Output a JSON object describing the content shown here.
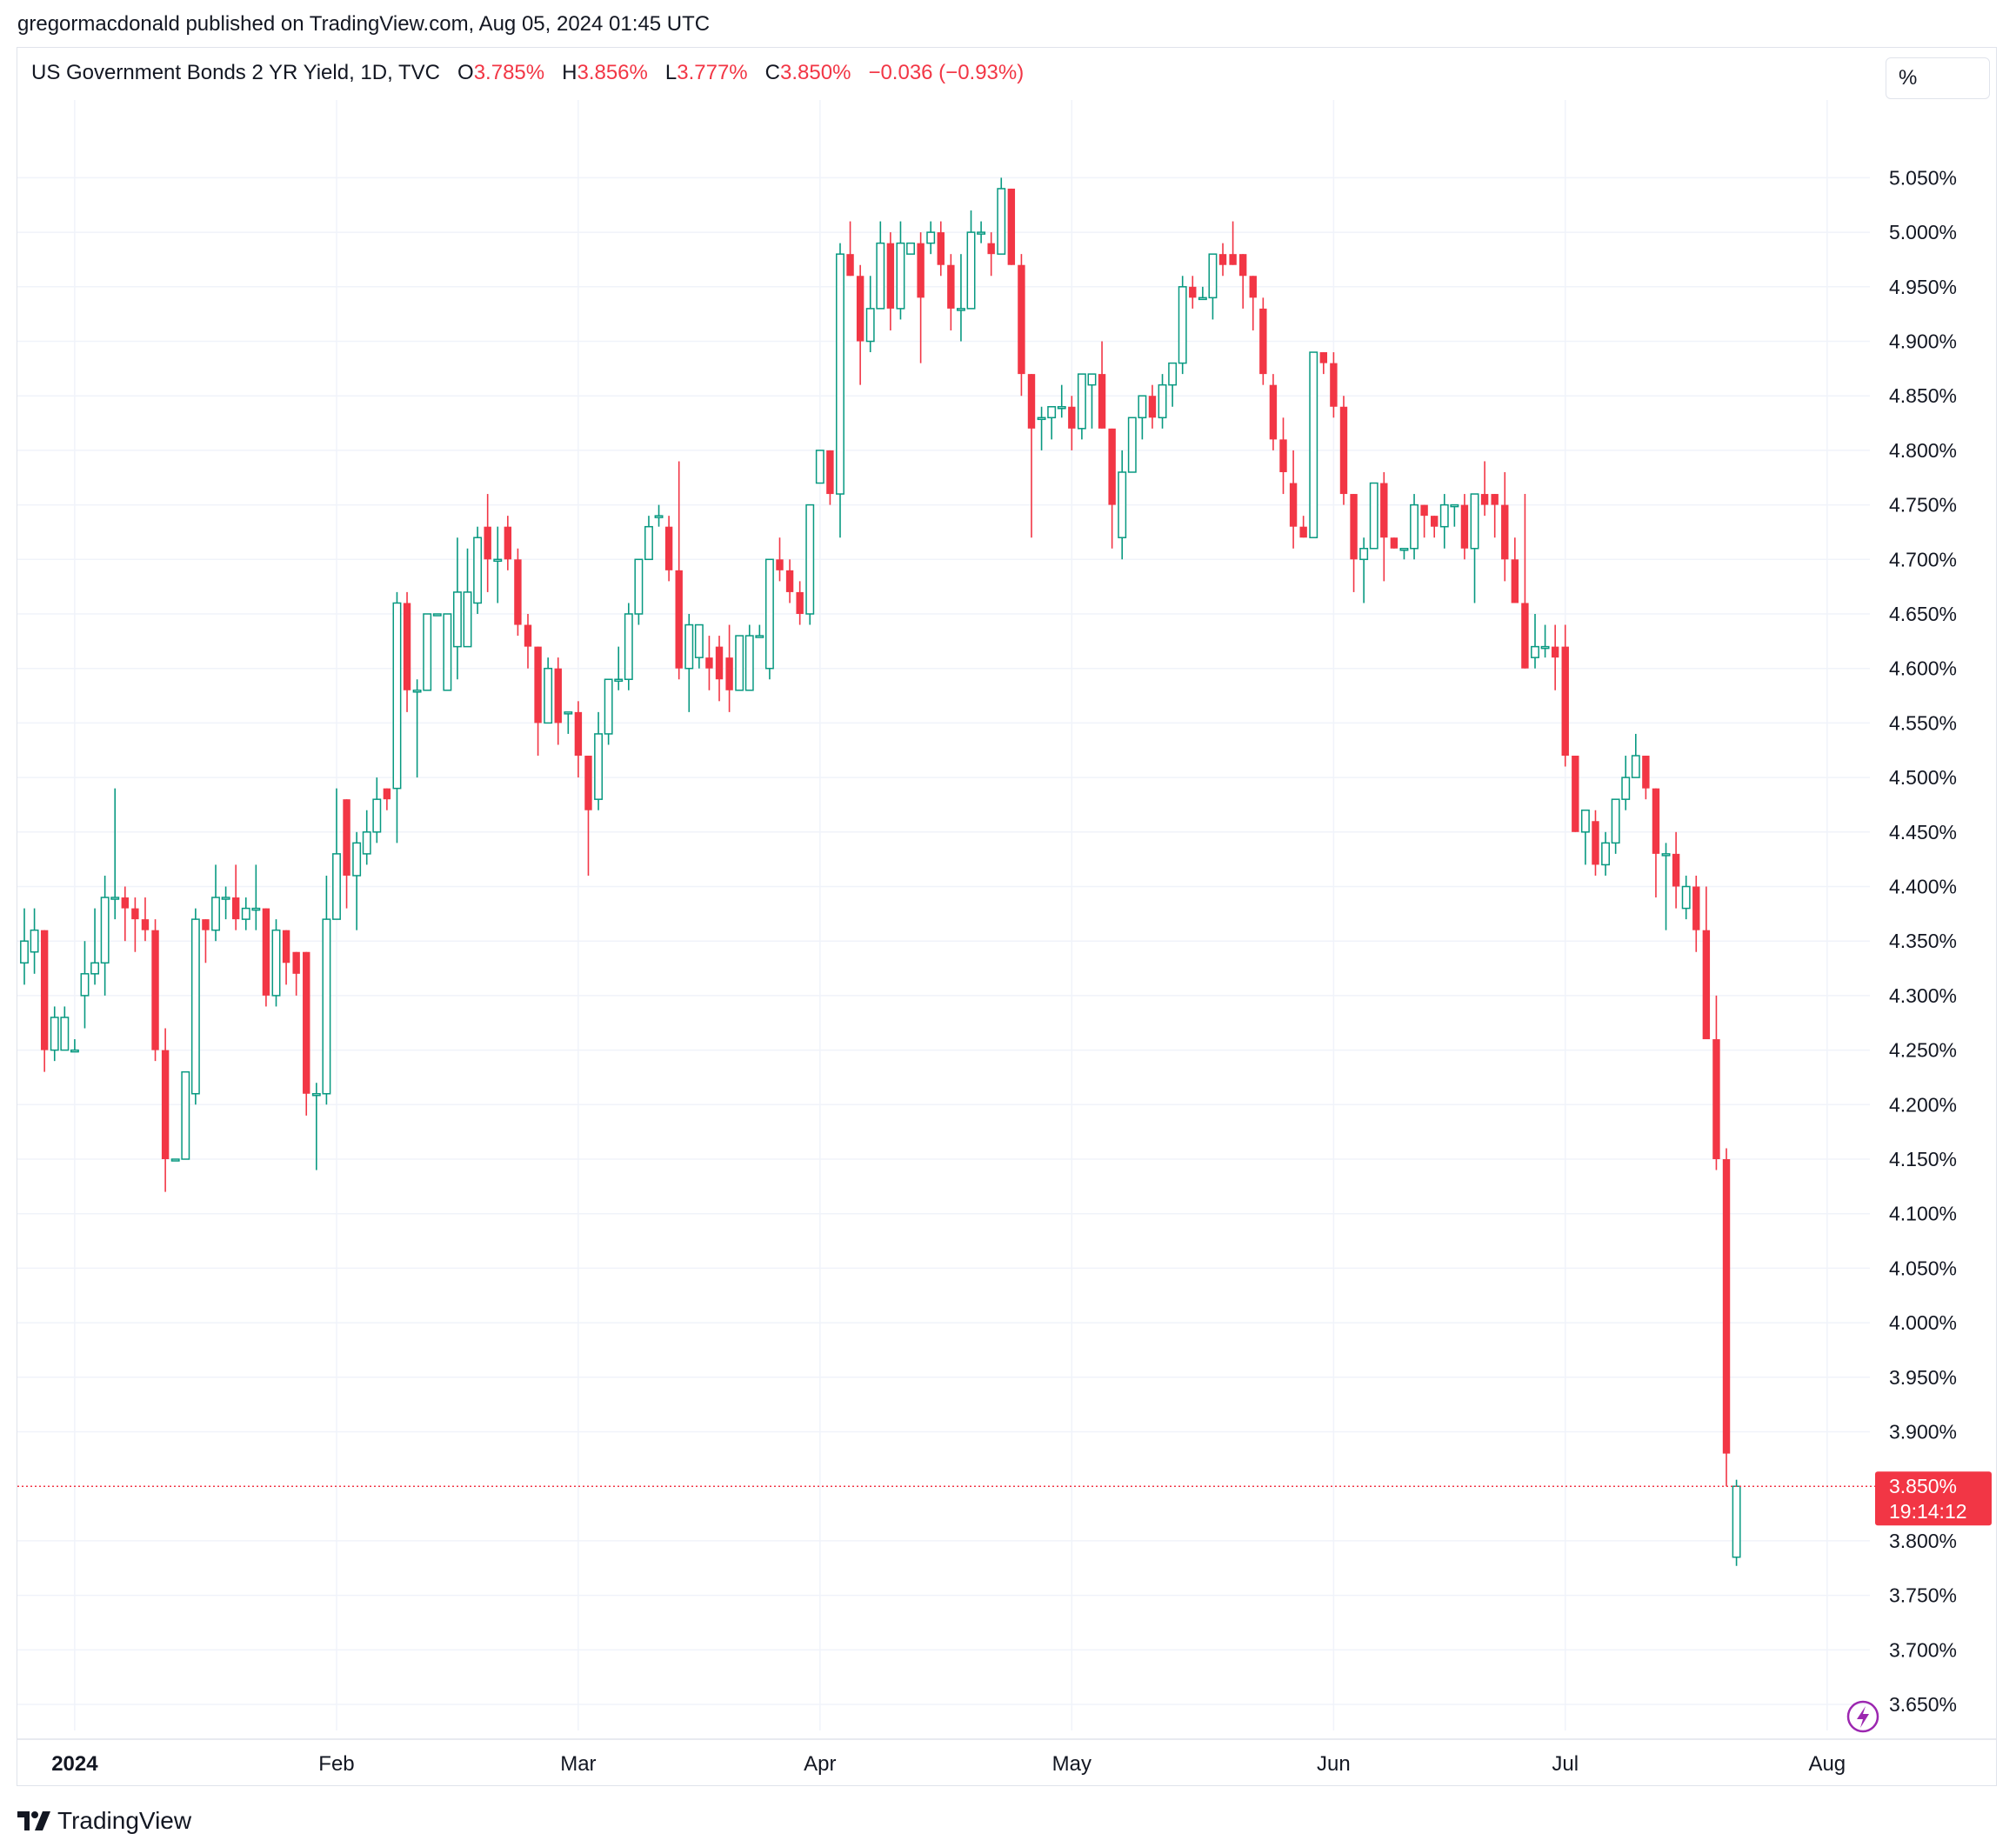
{
  "header": {
    "publisher_text": "gregormacdonald published on TradingView.com, Aug 05, 2024 01:45 UTC"
  },
  "legend": {
    "symbol": "US Government Bonds 2 YR Yield, 1D, TVC",
    "open_label": "O",
    "open": "3.785%",
    "high_label": "H",
    "high": "3.856%",
    "low_label": "L",
    "low": "3.777%",
    "close_label": "C",
    "close": "3.850%",
    "change": "−0.036 (−0.93%)"
  },
  "unit_button": "%",
  "price_marker": {
    "price": "3.850%",
    "countdown": "19:14:12"
  },
  "footer": {
    "brand": "TradingView"
  },
  "colors": {
    "up": "#089981",
    "down": "#f23645",
    "grid": "#f0f3fa",
    "axis_text": "#131722"
  },
  "chart_data": {
    "type": "candlestick",
    "ylim": [
      3.6,
      5.11
    ],
    "y_ticks": [
      {
        "v": 3.65,
        "label": "3.650%"
      },
      {
        "v": 3.7,
        "label": "3.700%"
      },
      {
        "v": 3.75,
        "label": "3.750%"
      },
      {
        "v": 3.8,
        "label": "3.800%"
      },
      {
        "v": 3.9,
        "label": "3.900%"
      },
      {
        "v": 3.95,
        "label": "3.950%"
      },
      {
        "v": 4.0,
        "label": "4.000%"
      },
      {
        "v": 4.05,
        "label": "4.050%"
      },
      {
        "v": 4.1,
        "label": "4.100%"
      },
      {
        "v": 4.15,
        "label": "4.150%"
      },
      {
        "v": 4.2,
        "label": "4.200%"
      },
      {
        "v": 4.25,
        "label": "4.250%"
      },
      {
        "v": 4.3,
        "label": "4.300%"
      },
      {
        "v": 4.35,
        "label": "4.350%"
      },
      {
        "v": 4.4,
        "label": "4.400%"
      },
      {
        "v": 4.45,
        "label": "4.450%"
      },
      {
        "v": 4.5,
        "label": "4.500%"
      },
      {
        "v": 4.55,
        "label": "4.550%"
      },
      {
        "v": 4.6,
        "label": "4.600%"
      },
      {
        "v": 4.65,
        "label": "4.650%"
      },
      {
        "v": 4.7,
        "label": "4.700%"
      },
      {
        "v": 4.75,
        "label": "4.750%"
      },
      {
        "v": 4.8,
        "label": "4.800%"
      },
      {
        "v": 4.85,
        "label": "4.850%"
      },
      {
        "v": 4.9,
        "label": "4.900%"
      },
      {
        "v": 4.95,
        "label": "4.950%"
      },
      {
        "v": 5.0,
        "label": "5.000%"
      },
      {
        "v": 5.05,
        "label": "5.050%"
      }
    ],
    "x_ticks": [
      {
        "i": 5,
        "label": "2024",
        "bold": true
      },
      {
        "i": 31,
        "label": "Feb"
      },
      {
        "i": 55,
        "label": "Mar"
      },
      {
        "i": 79,
        "label": "Apr"
      },
      {
        "i": 104,
        "label": "May"
      },
      {
        "i": 130,
        "label": "Jun"
      },
      {
        "i": 153,
        "label": "Jul"
      },
      {
        "i": 179,
        "label": "Aug"
      }
    ],
    "last_price": 3.85,
    "candles": [
      [
        4.33,
        4.35,
        4.31,
        4.38
      ],
      [
        4.34,
        4.36,
        4.32,
        4.38
      ],
      [
        4.36,
        4.25,
        4.23,
        4.36
      ],
      [
        4.25,
        4.28,
        4.24,
        4.29
      ],
      [
        4.25,
        4.28,
        4.25,
        4.29
      ],
      [
        4.25,
        4.25,
        4.25,
        4.26
      ],
      [
        4.3,
        4.32,
        4.27,
        4.35
      ],
      [
        4.32,
        4.33,
        4.31,
        4.38
      ],
      [
        4.33,
        4.39,
        4.3,
        4.41
      ],
      [
        4.39,
        4.39,
        4.37,
        4.49
      ],
      [
        4.39,
        4.38,
        4.35,
        4.4
      ],
      [
        4.38,
        4.37,
        4.34,
        4.39
      ],
      [
        4.37,
        4.36,
        4.35,
        4.39
      ],
      [
        4.36,
        4.25,
        4.24,
        4.37
      ],
      [
        4.25,
        4.15,
        4.12,
        4.27
      ],
      [
        4.15,
        4.15,
        4.15,
        4.15
      ],
      [
        4.15,
        4.23,
        4.15,
        4.23
      ],
      [
        4.21,
        4.37,
        4.2,
        4.38
      ],
      [
        4.37,
        4.36,
        4.33,
        4.37
      ],
      [
        4.36,
        4.39,
        4.35,
        4.42
      ],
      [
        4.39,
        4.39,
        4.37,
        4.4
      ],
      [
        4.39,
        4.37,
        4.36,
        4.42
      ],
      [
        4.37,
        4.38,
        4.36,
        4.39
      ],
      [
        4.38,
        4.38,
        4.36,
        4.42
      ],
      [
        4.38,
        4.3,
        4.29,
        4.38
      ],
      [
        4.3,
        4.36,
        4.29,
        4.37
      ],
      [
        4.36,
        4.33,
        4.31,
        4.36
      ],
      [
        4.34,
        4.32,
        4.3,
        4.34
      ],
      [
        4.34,
        4.21,
        4.19,
        4.34
      ],
      [
        4.21,
        4.21,
        4.14,
        4.22
      ],
      [
        4.21,
        4.37,
        4.2,
        4.41
      ],
      [
        4.37,
        4.43,
        4.37,
        4.49
      ],
      [
        4.48,
        4.41,
        4.38,
        4.48
      ],
      [
        4.41,
        4.44,
        4.36,
        4.45
      ],
      [
        4.43,
        4.45,
        4.42,
        4.47
      ],
      [
        4.45,
        4.48,
        4.44,
        4.5
      ],
      [
        4.49,
        4.48,
        4.47,
        4.49
      ],
      [
        4.49,
        4.66,
        4.44,
        4.67
      ],
      [
        4.66,
        4.58,
        4.56,
        4.67
      ],
      [
        4.58,
        4.58,
        4.5,
        4.59
      ],
      [
        4.58,
        4.65,
        4.58,
        4.65
      ],
      [
        4.65,
        4.65,
        4.65,
        4.65
      ],
      [
        4.58,
        4.65,
        4.58,
        4.65
      ],
      [
        4.62,
        4.67,
        4.59,
        4.72
      ],
      [
        4.62,
        4.67,
        4.63,
        4.71
      ],
      [
        4.66,
        4.72,
        4.65,
        4.73
      ],
      [
        4.73,
        4.7,
        4.67,
        4.76
      ],
      [
        4.7,
        4.7,
        4.66,
        4.73
      ],
      [
        4.73,
        4.7,
        4.69,
        4.74
      ],
      [
        4.7,
        4.64,
        4.63,
        4.71
      ],
      [
        4.64,
        4.62,
        4.6,
        4.65
      ],
      [
        4.62,
        4.55,
        4.52,
        4.62
      ],
      [
        4.55,
        4.6,
        4.55,
        4.61
      ],
      [
        4.6,
        4.55,
        4.53,
        4.61
      ],
      [
        4.56,
        4.56,
        4.54,
        4.56
      ],
      [
        4.56,
        4.52,
        4.5,
        4.57
      ],
      [
        4.52,
        4.47,
        4.41,
        4.52
      ],
      [
        4.48,
        4.54,
        4.47,
        4.56
      ],
      [
        4.54,
        4.59,
        4.53,
        4.59
      ],
      [
        4.59,
        4.59,
        4.58,
        4.62
      ],
      [
        4.59,
        4.65,
        4.58,
        4.66
      ],
      [
        4.65,
        4.7,
        4.64,
        4.7
      ],
      [
        4.7,
        4.73,
        4.7,
        4.74
      ],
      [
        4.74,
        4.74,
        4.73,
        4.75
      ],
      [
        4.73,
        4.69,
        4.68,
        4.74
      ],
      [
        4.69,
        4.6,
        4.59,
        4.79
      ],
      [
        4.6,
        4.64,
        4.56,
        4.65
      ],
      [
        4.61,
        4.64,
        4.6,
        4.64
      ],
      [
        4.61,
        4.6,
        4.58,
        4.63
      ],
      [
        4.62,
        4.59,
        4.57,
        4.63
      ],
      [
        4.61,
        4.58,
        4.56,
        4.64
      ],
      [
        4.58,
        4.63,
        4.58,
        4.63
      ],
      [
        4.58,
        4.63,
        4.58,
        4.64
      ],
      [
        4.63,
        4.63,
        4.63,
        4.64
      ],
      [
        4.6,
        4.7,
        4.59,
        4.7
      ],
      [
        4.7,
        4.69,
        4.68,
        4.72
      ],
      [
        4.69,
        4.67,
        4.66,
        4.7
      ],
      [
        4.67,
        4.65,
        4.64,
        4.68
      ],
      [
        4.65,
        4.75,
        4.64,
        4.75
      ],
      [
        4.77,
        4.8,
        4.77,
        4.8
      ],
      [
        4.8,
        4.76,
        4.75,
        4.8
      ],
      [
        4.76,
        4.98,
        4.72,
        4.99
      ],
      [
        4.98,
        4.96,
        4.96,
        5.01
      ],
      [
        4.96,
        4.9,
        4.86,
        4.97
      ],
      [
        4.9,
        4.93,
        4.89,
        4.96
      ],
      [
        4.93,
        4.99,
        4.93,
        5.01
      ],
      [
        4.99,
        4.93,
        4.91,
        5.0
      ],
      [
        4.93,
        4.99,
        4.92,
        5.01
      ],
      [
        4.98,
        4.99,
        4.98,
        4.99
      ],
      [
        4.99,
        4.94,
        4.88,
        5.0
      ],
      [
        4.99,
        5.0,
        4.98,
        5.01
      ],
      [
        5.0,
        4.97,
        4.96,
        5.01
      ],
      [
        4.97,
        4.93,
        4.91,
        4.98
      ],
      [
        4.93,
        4.93,
        4.9,
        4.98
      ],
      [
        4.93,
        5.0,
        4.93,
        5.02
      ],
      [
        5.0,
        5.0,
        4.99,
        5.01
      ],
      [
        4.99,
        4.98,
        4.96,
        5.0
      ],
      [
        4.98,
        5.04,
        4.98,
        5.05
      ],
      [
        5.04,
        4.97,
        4.97,
        5.04
      ],
      [
        4.97,
        4.87,
        4.85,
        4.98
      ],
      [
        4.87,
        4.82,
        4.72,
        4.87
      ],
      [
        4.83,
        4.83,
        4.8,
        4.84
      ],
      [
        4.83,
        4.84,
        4.81,
        4.84
      ],
      [
        4.84,
        4.84,
        4.83,
        4.86
      ],
      [
        4.84,
        4.82,
        4.8,
        4.85
      ],
      [
        4.82,
        4.87,
        4.81,
        4.87
      ],
      [
        4.86,
        4.87,
        4.82,
        4.87
      ],
      [
        4.87,
        4.82,
        4.82,
        4.9
      ],
      [
        4.82,
        4.75,
        4.71,
        4.82
      ],
      [
        4.72,
        4.78,
        4.7,
        4.8
      ],
      [
        4.78,
        4.83,
        4.78,
        4.83
      ],
      [
        4.83,
        4.85,
        4.81,
        4.85
      ],
      [
        4.85,
        4.83,
        4.82,
        4.86
      ],
      [
        4.83,
        4.86,
        4.82,
        4.87
      ],
      [
        4.86,
        4.88,
        4.84,
        4.88
      ],
      [
        4.88,
        4.95,
        4.87,
        4.96
      ],
      [
        4.95,
        4.94,
        4.93,
        4.96
      ],
      [
        4.94,
        4.94,
        4.94,
        4.95
      ],
      [
        4.94,
        4.98,
        4.92,
        4.98
      ],
      [
        4.98,
        4.97,
        4.96,
        4.99
      ],
      [
        4.98,
        4.97,
        4.97,
        5.01
      ],
      [
        4.98,
        4.96,
        4.93,
        4.98
      ],
      [
        4.96,
        4.94,
        4.91,
        4.96
      ],
      [
        4.93,
        4.87,
        4.86,
        4.94
      ],
      [
        4.86,
        4.81,
        4.8,
        4.87
      ],
      [
        4.81,
        4.78,
        4.76,
        4.83
      ],
      [
        4.77,
        4.73,
        4.71,
        4.8
      ],
      [
        4.73,
        4.72,
        4.72,
        4.74
      ],
      [
        4.72,
        4.89,
        4.72,
        4.89
      ],
      [
        4.89,
        4.88,
        4.87,
        4.89
      ],
      [
        4.88,
        4.84,
        4.83,
        4.89
      ],
      [
        4.84,
        4.76,
        4.75,
        4.85
      ],
      [
        4.76,
        4.7,
        4.67,
        4.76
      ],
      [
        4.7,
        4.71,
        4.66,
        4.72
      ],
      [
        4.71,
        4.77,
        4.71,
        4.77
      ],
      [
        4.77,
        4.72,
        4.68,
        4.78
      ],
      [
        4.72,
        4.71,
        4.71,
        4.72
      ],
      [
        4.71,
        4.71,
        4.7,
        4.71
      ],
      [
        4.71,
        4.75,
        4.7,
        4.76
      ],
      [
        4.75,
        4.74,
        4.72,
        4.75
      ],
      [
        4.74,
        4.73,
        4.72,
        4.74
      ],
      [
        4.73,
        4.75,
        4.71,
        4.76
      ],
      [
        4.75,
        4.75,
        4.73,
        4.75
      ],
      [
        4.75,
        4.71,
        4.7,
        4.76
      ],
      [
        4.71,
        4.76,
        4.66,
        4.76
      ],
      [
        4.76,
        4.75,
        4.74,
        4.79
      ],
      [
        4.76,
        4.75,
        4.72,
        4.76
      ],
      [
        4.75,
        4.7,
        4.68,
        4.78
      ],
      [
        4.7,
        4.66,
        4.67,
        4.72
      ],
      [
        4.66,
        4.6,
        4.6,
        4.76
      ],
      [
        4.61,
        4.62,
        4.6,
        4.65
      ],
      [
        4.62,
        4.62,
        4.61,
        4.64
      ],
      [
        4.62,
        4.61,
        4.58,
        4.64
      ],
      [
        4.62,
        4.52,
        4.51,
        4.64
      ],
      [
        4.52,
        4.45,
        4.45,
        4.52
      ],
      [
        4.45,
        4.47,
        4.42,
        4.47
      ],
      [
        4.46,
        4.42,
        4.41,
        4.47
      ],
      [
        4.42,
        4.44,
        4.41,
        4.45
      ],
      [
        4.44,
        4.48,
        4.43,
        4.48
      ],
      [
        4.48,
        4.5,
        4.47,
        4.52
      ],
      [
        4.5,
        4.52,
        4.5,
        4.54
      ],
      [
        4.52,
        4.49,
        4.48,
        4.52
      ],
      [
        4.49,
        4.43,
        4.39,
        4.49
      ],
      [
        4.43,
        4.43,
        4.36,
        4.44
      ],
      [
        4.43,
        4.4,
        4.38,
        4.45
      ],
      [
        4.38,
        4.4,
        4.37,
        4.41
      ],
      [
        4.4,
        4.36,
        4.34,
        4.41
      ],
      [
        4.36,
        4.26,
        4.26,
        4.4
      ],
      [
        4.26,
        4.15,
        4.14,
        4.3
      ],
      [
        4.15,
        3.88,
        3.85,
        4.16
      ],
      [
        3.785,
        3.85,
        3.777,
        3.856
      ]
    ]
  }
}
